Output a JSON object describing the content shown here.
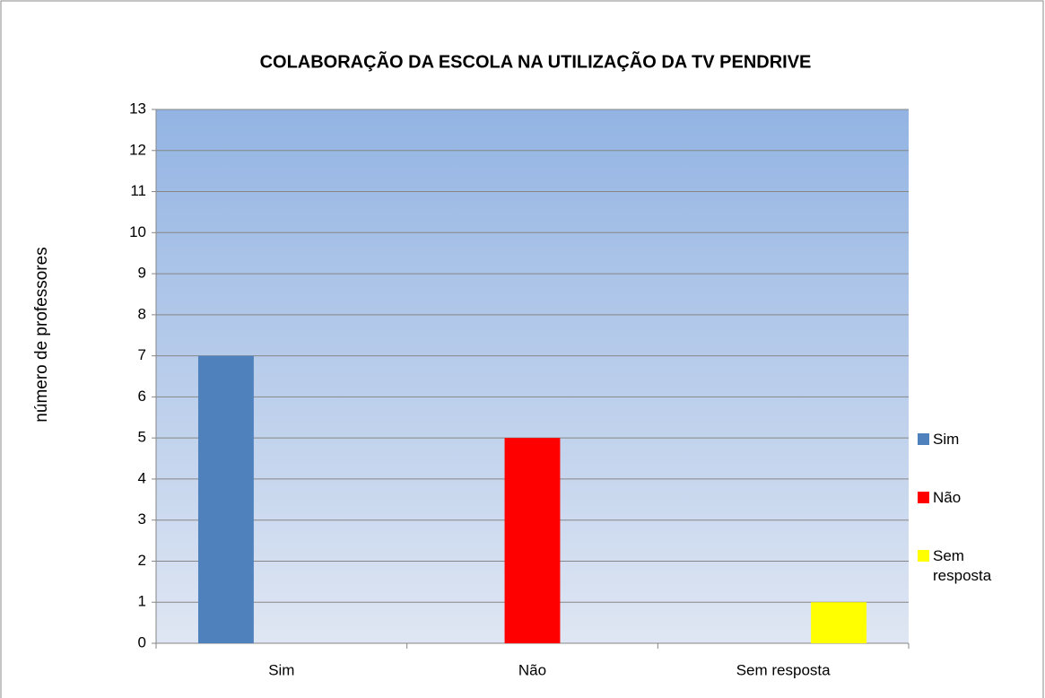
{
  "chart_data": {
    "type": "bar",
    "title": "COLABORAÇÃO DA ESCOLA NA UTILIZAÇÃO DA TV PENDRIVE",
    "y_label": "número de professores",
    "categories": [
      "Sim",
      "Não",
      "Sem resposta"
    ],
    "series": [
      {
        "name": "Sim",
        "color": "#4f81bd",
        "values": [
          7,
          null,
          null
        ]
      },
      {
        "name": "Não",
        "color": "#ff0000",
        "values": [
          null,
          5,
          null
        ]
      },
      {
        "name": "Sem resposta",
        "color": "#ffff00",
        "values": [
          null,
          null,
          1
        ]
      }
    ],
    "ylim": [
      0,
      13
    ],
    "yticks": [
      0,
      1,
      2,
      3,
      4,
      5,
      6,
      7,
      8,
      9,
      10,
      11,
      12,
      13
    ],
    "grid": true,
    "legend": "right"
  }
}
